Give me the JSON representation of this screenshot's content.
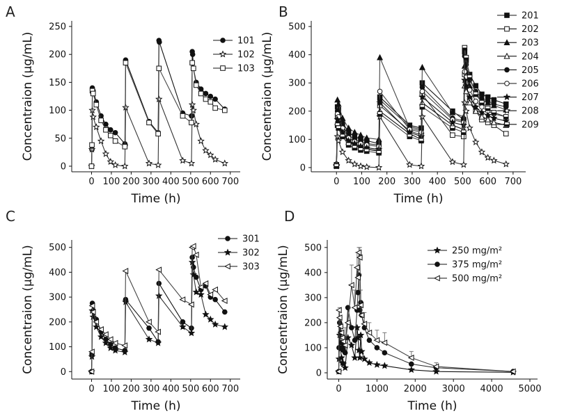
{
  "chart_data": [
    {
      "panel": "A",
      "type": "line",
      "xlabel": "Time (h)",
      "ylabel": "Concentraion (μg/mL)",
      "xlim": [
        -100,
        750
      ],
      "ylim": [
        -10,
        260
      ],
      "xticks": [
        0,
        100,
        200,
        300,
        400,
        500,
        600,
        700
      ],
      "yticks": [
        0,
        50,
        100,
        150,
        200,
        250
      ],
      "legend": "top-right",
      "series": [
        {
          "name": "101",
          "marker": "filled-circle",
          "x": [
            0,
            2,
            4,
            8,
            24,
            48,
            72,
            96,
            120,
            168,
            170,
            172,
            290,
            336,
            340,
            342,
            460,
            504,
            506,
            508,
            510,
            514,
            528,
            552,
            576,
            600,
            624,
            672
          ],
          "y": [
            0,
            30,
            140,
            135,
            115,
            90,
            75,
            65,
            60,
            40,
            38,
            190,
            80,
            60,
            225,
            222,
            95,
            90,
            90,
            205,
            200,
            175,
            150,
            138,
            130,
            125,
            120,
            102
          ]
        },
        {
          "name": "102",
          "marker": "open-star",
          "x": [
            0,
            2,
            4,
            8,
            24,
            48,
            72,
            96,
            120,
            168,
            172,
            290,
            336,
            340,
            460,
            504,
            508,
            514,
            528,
            552,
            576,
            600,
            624,
            672
          ],
          "y": [
            0,
            30,
            100,
            88,
            70,
            45,
            22,
            8,
            2,
            0,
            105,
            5,
            2,
            120,
            10,
            5,
            110,
            100,
            75,
            45,
            28,
            20,
            12,
            5
          ]
        },
        {
          "name": "103",
          "marker": "open-square",
          "x": [
            0,
            2,
            4,
            8,
            24,
            48,
            72,
            96,
            120,
            168,
            172,
            290,
            336,
            340,
            460,
            504,
            508,
            514,
            528,
            552,
            576,
            600,
            624,
            672
          ],
          "y": [
            0,
            38,
            135,
            130,
            110,
            82,
            65,
            55,
            45,
            35,
            185,
            78,
            58,
            175,
            90,
            78,
            185,
            175,
            145,
            130,
            120,
            115,
            104,
            100
          ]
        }
      ]
    },
    {
      "panel": "B",
      "type": "line",
      "xlabel": "Time (h)",
      "ylabel": "Concentraion (μg/mL)",
      "xlim": [
        -100,
        750
      ],
      "ylim": [
        -15,
        520
      ],
      "xticks": [
        0,
        100,
        200,
        300,
        400,
        500,
        600,
        700
      ],
      "yticks": [
        0,
        100,
        200,
        300,
        400,
        500
      ],
      "legend": "right",
      "series": [
        {
          "name": "201",
          "marker": "filled-square",
          "x": [
            0,
            4,
            8,
            24,
            48,
            72,
            96,
            120,
            168,
            172,
            290,
            336,
            340,
            460,
            504,
            508,
            514,
            528,
            552,
            576,
            600,
            624,
            672
          ],
          "y": [
            10,
            215,
            205,
            160,
            125,
            110,
            100,
            95,
            85,
            250,
            150,
            140,
            300,
            200,
            170,
            410,
            380,
            330,
            290,
            260,
            250,
            240,
            225
          ]
        },
        {
          "name": "202",
          "marker": "open-square",
          "x": [
            0,
            4,
            8,
            24,
            48,
            72,
            96,
            120,
            168,
            172,
            290,
            336,
            340,
            460,
            504,
            508,
            514,
            528,
            552,
            576,
            600,
            624,
            672
          ],
          "y": [
            5,
            180,
            170,
            130,
            95,
            80,
            70,
            65,
            60,
            220,
            130,
            115,
            260,
            115,
            110,
            330,
            300,
            240,
            200,
            170,
            160,
            150,
            120
          ]
        },
        {
          "name": "203",
          "marker": "filled-triangle",
          "x": [
            0,
            4,
            8,
            24,
            48,
            72,
            96,
            120,
            168,
            172,
            290,
            336,
            340,
            460,
            504,
            508,
            514,
            528,
            552,
            576,
            600,
            624,
            672
          ],
          "y": [
            15,
            240,
            225,
            175,
            140,
            125,
            115,
            105,
            100,
            390,
            140,
            130,
            355,
            195,
            180,
            360,
            340,
            290,
            260,
            240,
            230,
            220,
            205
          ]
        },
        {
          "name": "204",
          "marker": "open-triangle",
          "x": [
            0,
            4,
            8,
            24,
            48,
            72,
            96,
            120,
            168,
            172,
            290,
            336,
            340,
            460,
            504,
            508,
            514,
            528,
            552,
            576,
            600,
            624,
            672
          ],
          "y": [
            8,
            160,
            150,
            120,
            90,
            80,
            70,
            65,
            58,
            200,
            120,
            100,
            230,
            150,
            135,
            290,
            270,
            230,
            200,
            180,
            170,
            160,
            150
          ]
        },
        {
          "name": "205",
          "marker": "filled-circle",
          "x": [
            0,
            4,
            8,
            24,
            48,
            72,
            96,
            120,
            168,
            172,
            290,
            336,
            340,
            460,
            504,
            508,
            514,
            528,
            552,
            576,
            600,
            624,
            672
          ],
          "y": [
            12,
            200,
            190,
            150,
            115,
            100,
            90,
            85,
            80,
            240,
            145,
            135,
            285,
            175,
            165,
            395,
            365,
            310,
            270,
            245,
            235,
            225,
            215
          ]
        },
        {
          "name": "206",
          "marker": "open-circle",
          "x": [
            0,
            4,
            8,
            24,
            48,
            72,
            96,
            120,
            168,
            172,
            290,
            336,
            340,
            460,
            504,
            508,
            514,
            528,
            552,
            576,
            600,
            624,
            672
          ],
          "y": [
            10,
            190,
            180,
            140,
            105,
            92,
            85,
            80,
            75,
            270,
            135,
            125,
            270,
            170,
            160,
            340,
            320,
            275,
            235,
            215,
            200,
            190,
            180
          ]
        },
        {
          "name": "207",
          "marker": "filled-star",
          "x": [
            0,
            4,
            8,
            24,
            48,
            72,
            96,
            120,
            168,
            172,
            290,
            336,
            340,
            460,
            504,
            508,
            514,
            528,
            552,
            576,
            600,
            624,
            672
          ],
          "y": [
            8,
            170,
            160,
            125,
            95,
            85,
            75,
            70,
            65,
            230,
            125,
            110,
            250,
            160,
            150,
            310,
            290,
            250,
            215,
            195,
            185,
            175,
            165
          ]
        },
        {
          "name": "208",
          "marker": "open-star",
          "x": [
            0,
            4,
            8,
            24,
            48,
            72,
            96,
            120,
            168,
            172,
            290,
            336,
            340,
            460,
            504,
            508,
            514,
            528,
            552,
            576,
            600,
            624,
            672
          ],
          "y": [
            5,
            110,
            95,
            55,
            25,
            12,
            5,
            2,
            0,
            180,
            10,
            5,
            180,
            20,
            10,
            230,
            200,
            140,
            90,
            55,
            35,
            25,
            12
          ]
        },
        {
          "name": "209",
          "marker": "half-square",
          "x": [
            0,
            4,
            8,
            24,
            48,
            72,
            96,
            120,
            168,
            172,
            290,
            336,
            340,
            460,
            504,
            508,
            514,
            528,
            552,
            576,
            600,
            624,
            672
          ],
          "y": [
            5,
            150,
            140,
            110,
            80,
            70,
            62,
            58,
            52,
            190,
            110,
            95,
            215,
            140,
            125,
            425,
            390,
            320,
            260,
            230,
            210,
            195,
            180
          ]
        }
      ]
    },
    {
      "panel": "C",
      "type": "line",
      "xlabel": "Time (h)",
      "ylabel": "Concentraion (μg/mL)",
      "xlim": [
        -100,
        750
      ],
      "ylim": [
        -30,
        530
      ],
      "xticks": [
        0,
        100,
        200,
        300,
        400,
        500,
        600,
        700
      ],
      "yticks": [
        0,
        100,
        200,
        300,
        400,
        500
      ],
      "legend": "top-right",
      "series": [
        {
          "name": "301",
          "marker": "filled-circle",
          "x": [
            0,
            2,
            4,
            8,
            24,
            48,
            72,
            96,
            120,
            168,
            172,
            290,
            336,
            340,
            460,
            504,
            508,
            514,
            528,
            552,
            576,
            600,
            624,
            672
          ],
          "y": [
            0,
            70,
            275,
            245,
            210,
            160,
            130,
            110,
            95,
            85,
            290,
            175,
            120,
            355,
            200,
            175,
            460,
            420,
            380,
            330,
            345,
            300,
            290,
            240
          ]
        },
        {
          "name": "302",
          "marker": "filled-star",
          "x": [
            0,
            2,
            4,
            8,
            24,
            48,
            72,
            96,
            120,
            168,
            172,
            290,
            336,
            340,
            460,
            504,
            508,
            514,
            528,
            552,
            576,
            600,
            624,
            672
          ],
          "y": [
            0,
            60,
            245,
            220,
            180,
            140,
            115,
            95,
            85,
            78,
            280,
            130,
            115,
            305,
            180,
            155,
            440,
            390,
            320,
            310,
            230,
            210,
            190,
            180
          ]
        },
        {
          "name": "303",
          "marker": "open-triangle-left",
          "x": [
            0,
            2,
            4,
            8,
            24,
            48,
            72,
            96,
            120,
            168,
            172,
            290,
            336,
            340,
            460,
            504,
            508,
            514,
            528,
            552,
            576,
            600,
            624,
            672
          ],
          "y": [
            0,
            80,
            265,
            240,
            200,
            170,
            150,
            130,
            115,
            105,
            405,
            200,
            160,
            410,
            290,
            270,
            500,
            505,
            470,
            340,
            355,
            310,
            330,
            285
          ]
        }
      ]
    },
    {
      "panel": "D",
      "type": "line",
      "xlabel": "Time (h)",
      "ylabel": "Concentraion (μg/mL)",
      "xlim": [
        -300,
        5200
      ],
      "ylim": [
        -25,
        530
      ],
      "xticks": [
        0,
        1000,
        2000,
        3000,
        4000,
        5000
      ],
      "yticks": [
        0,
        100,
        200,
        300,
        400,
        500
      ],
      "legend": "top-right",
      "series": [
        {
          "name": "250 mg/m²",
          "marker": "filled-star",
          "x": [
            0,
            8,
            24,
            48,
            72,
            96,
            120,
            168,
            240,
            336,
            420,
            480,
            504,
            528,
            552,
            576,
            600,
            672,
            800,
            1000,
            1200,
            1900,
            2550,
            4560
          ],
          "y": [
            5,
            55,
            150,
            95,
            60,
            40,
            35,
            20,
            140,
            110,
            60,
            180,
            140,
            90,
            60,
            150,
            85,
            55,
            40,
            32,
            28,
            12,
            5,
            2
          ]
        },
        {
          "name": "375 mg/m²",
          "marker": "filled-circle",
          "x": [
            0,
            8,
            24,
            48,
            72,
            96,
            120,
            168,
            240,
            336,
            420,
            480,
            504,
            528,
            552,
            576,
            600,
            672,
            800,
            1000,
            1200,
            1900,
            2550,
            4560
          ],
          "y": [
            5,
            100,
            200,
            160,
            120,
            100,
            90,
            80,
            260,
            180,
            130,
            250,
            320,
            390,
            250,
            280,
            230,
            180,
            130,
            100,
            80,
            35,
            20,
            5
          ]
        },
        {
          "name": "500 mg/m²",
          "marker": "open-triangle-left",
          "x": [
            0,
            8,
            24,
            48,
            72,
            96,
            120,
            168,
            240,
            336,
            420,
            480,
            504,
            528,
            552,
            576,
            600,
            672,
            800,
            1000,
            1200,
            1900,
            2550,
            4560
          ],
          "y": [
            5,
            250,
            220,
            185,
            160,
            140,
            125,
            110,
            200,
            350,
            260,
            420,
            380,
            480,
            460,
            270,
            230,
            195,
            160,
            130,
            120,
            60,
            25,
            5
          ]
        }
      ],
      "error_bar_series": "500 mg/m²",
      "error_bar_points": [
        {
          "x": 24,
          "err": 40
        },
        {
          "x": 168,
          "err": 70
        },
        {
          "x": 240,
          "err": 60
        },
        {
          "x": 336,
          "err": 80
        },
        {
          "x": 420,
          "err": 70
        },
        {
          "x": 480,
          "err": 60
        },
        {
          "x": 528,
          "err": 20
        },
        {
          "x": 552,
          "err": 40
        },
        {
          "x": 576,
          "err": 60
        },
        {
          "x": 600,
          "err": 50
        },
        {
          "x": 672,
          "err": 45
        },
        {
          "x": 800,
          "err": 40
        },
        {
          "x": 1000,
          "err": 40
        },
        {
          "x": 1200,
          "err": 40
        },
        {
          "x": 1900,
          "err": 25
        },
        {
          "x": 2550,
          "err": 15
        },
        {
          "x": 4560,
          "err": 5
        }
      ]
    }
  ]
}
